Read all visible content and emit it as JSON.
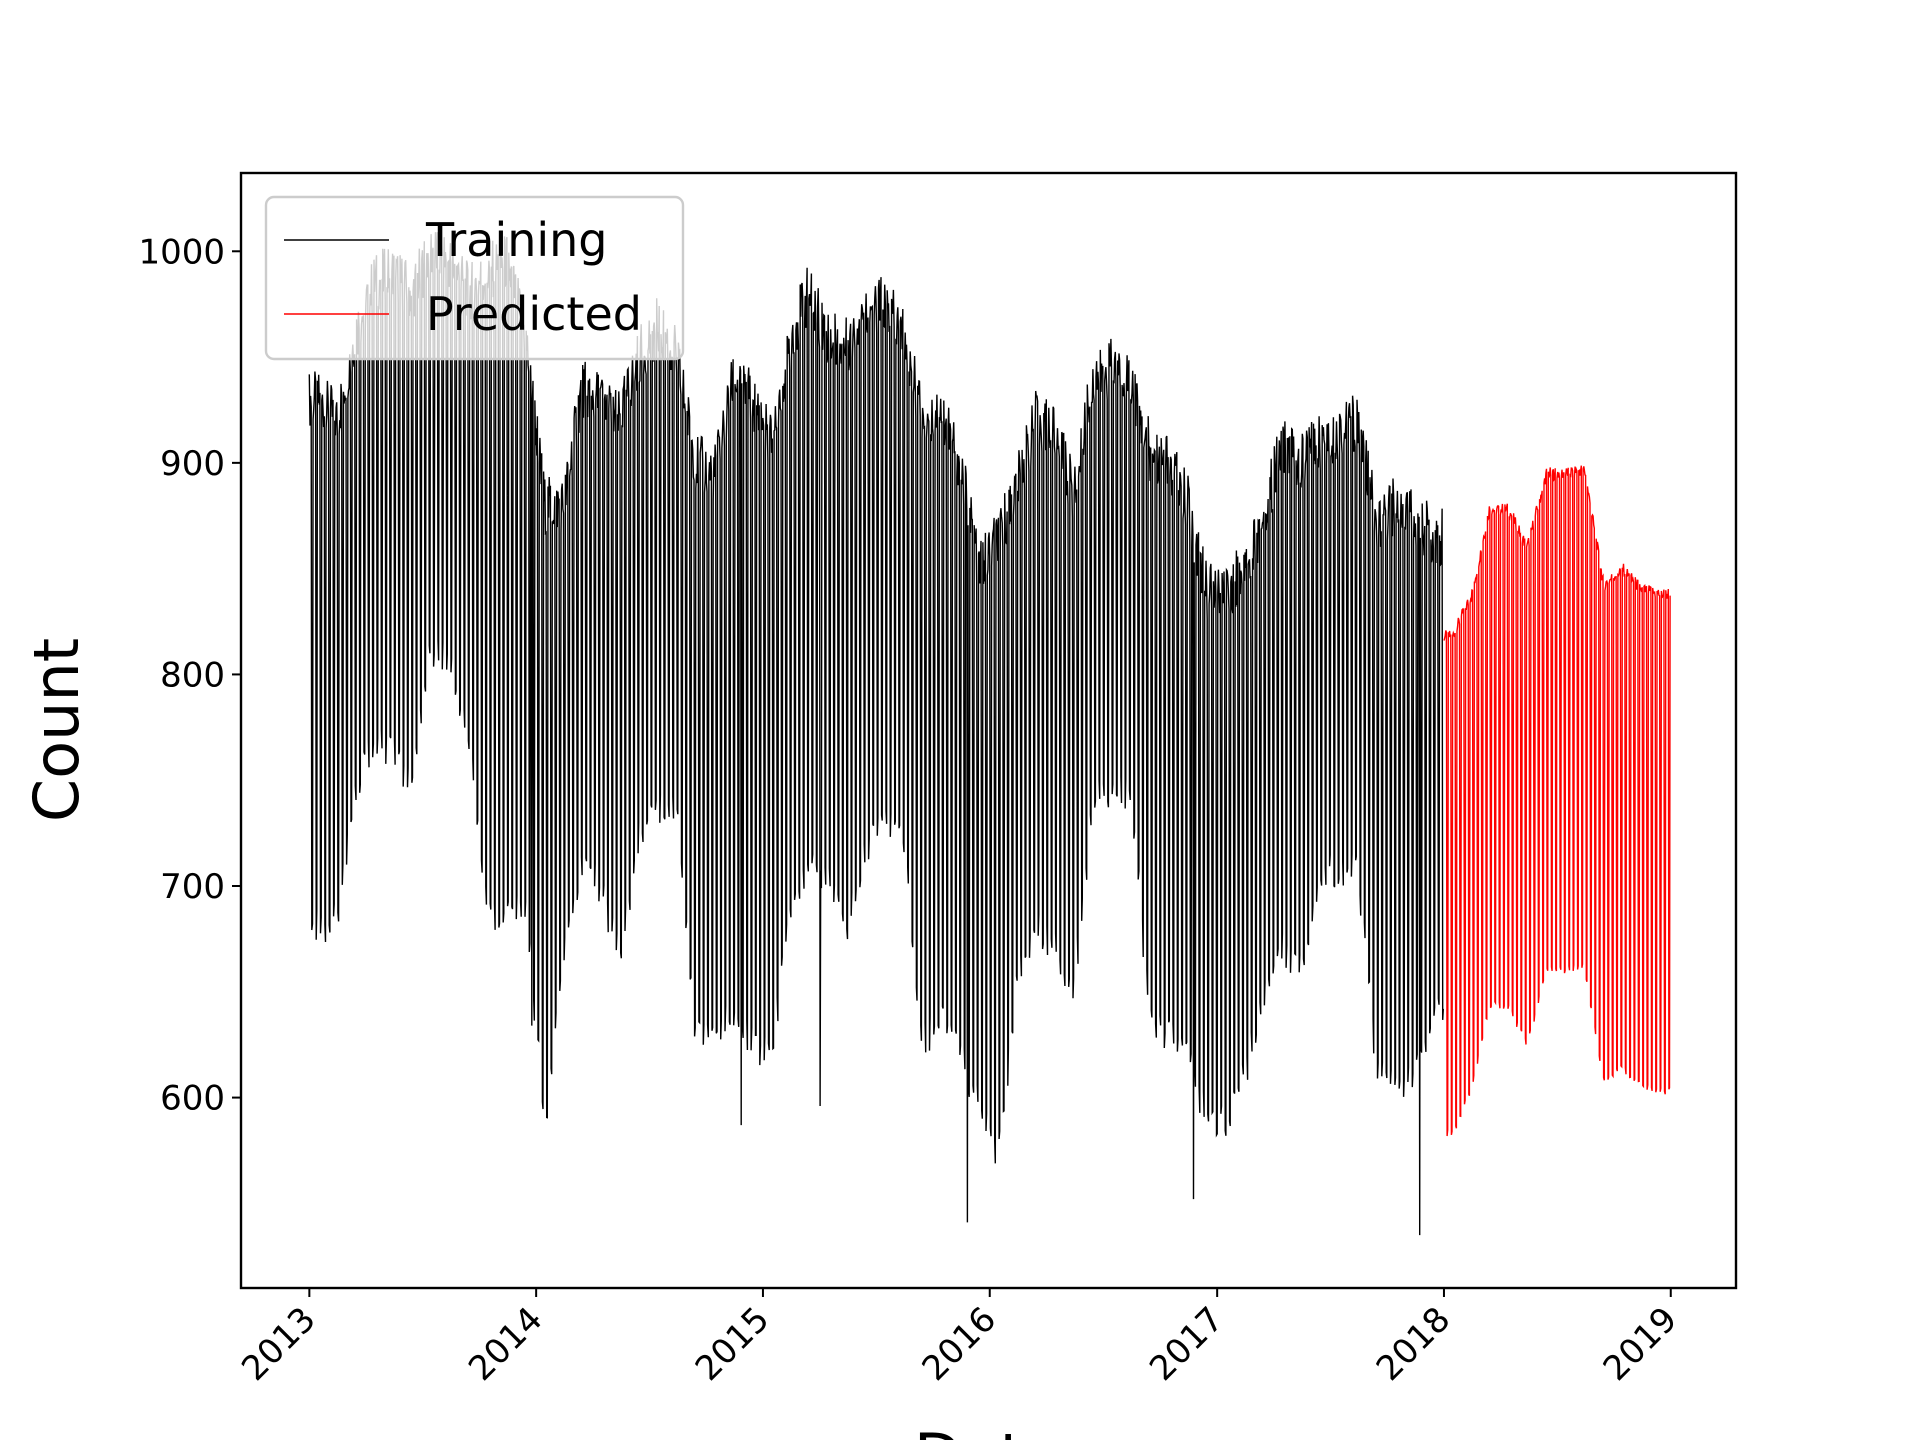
{
  "chart_data": {
    "type": "line",
    "title": "",
    "xlabel": "Date",
    "ylabel": "Count",
    "xlim": [
      "2012-09-13",
      "2019-04-16"
    ],
    "ylim": [
      510,
      1037
    ],
    "x_ticks": [
      "2013",
      "2014",
      "2015",
      "2016",
      "2017",
      "2018",
      "2019"
    ],
    "y_ticks": [
      600,
      700,
      800,
      900,
      1000
    ],
    "legend": {
      "placement": "upper-left",
      "entries": [
        "Training",
        "Predicted"
      ]
    },
    "grid": false,
    "series": [
      {
        "name": "Training",
        "color": "#000000",
        "pattern": "weekly oscillation between weekday high and weekend low",
        "x_range": [
          "2013-01-01",
          "2017-12-31"
        ],
        "monthly_upper": [
          {
            "x": "2013-01",
            "y": 930
          },
          {
            "x": "2013-02",
            "y": 920
          },
          {
            "x": "2013-03",
            "y": 960
          },
          {
            "x": "2013-04",
            "y": 985
          },
          {
            "x": "2013-05",
            "y": 990
          },
          {
            "x": "2013-06",
            "y": 980
          },
          {
            "x": "2013-07",
            "y": 1000
          },
          {
            "x": "2013-08",
            "y": 995
          },
          {
            "x": "2013-09",
            "y": 980
          },
          {
            "x": "2013-10",
            "y": 990
          },
          {
            "x": "2013-11",
            "y": 995
          },
          {
            "x": "2013-12",
            "y": 960
          },
          {
            "x": "2014-01",
            "y": 880
          },
          {
            "x": "2014-02",
            "y": 880
          },
          {
            "x": "2014-03",
            "y": 935
          },
          {
            "x": "2014-04",
            "y": 930
          },
          {
            "x": "2014-05",
            "y": 920
          },
          {
            "x": "2014-06",
            "y": 950
          },
          {
            "x": "2014-07",
            "y": 965
          },
          {
            "x": "2014-08",
            "y": 950
          },
          {
            "x": "2014-09",
            "y": 900
          },
          {
            "x": "2014-10",
            "y": 895
          },
          {
            "x": "2014-11",
            "y": 940
          },
          {
            "x": "2014-12",
            "y": 930
          },
          {
            "x": "2015-01",
            "y": 910
          },
          {
            "x": "2015-02",
            "y": 960
          },
          {
            "x": "2015-03",
            "y": 980
          },
          {
            "x": "2015-04",
            "y": 960
          },
          {
            "x": "2015-05",
            "y": 955
          },
          {
            "x": "2015-06",
            "y": 975
          },
          {
            "x": "2015-07",
            "y": 975
          },
          {
            "x": "2015-08",
            "y": 960
          },
          {
            "x": "2015-09",
            "y": 920
          },
          {
            "x": "2015-10",
            "y": 925
          },
          {
            "x": "2015-11",
            "y": 900
          },
          {
            "x": "2015-12",
            "y": 850
          },
          {
            "x": "2016-01",
            "y": 865
          },
          {
            "x": "2016-02",
            "y": 890
          },
          {
            "x": "2016-03",
            "y": 920
          },
          {
            "x": "2016-04",
            "y": 915
          },
          {
            "x": "2016-05",
            "y": 885
          },
          {
            "x": "2016-06",
            "y": 940
          },
          {
            "x": "2016-07",
            "y": 945
          },
          {
            "x": "2016-08",
            "y": 940
          },
          {
            "x": "2016-09",
            "y": 905
          },
          {
            "x": "2016-10",
            "y": 900
          },
          {
            "x": "2016-11",
            "y": 880
          },
          {
            "x": "2016-12",
            "y": 840
          },
          {
            "x": "2017-01",
            "y": 835
          },
          {
            "x": "2017-02",
            "y": 855
          },
          {
            "x": "2017-03",
            "y": 870
          },
          {
            "x": "2017-04",
            "y": 910
          },
          {
            "x": "2017-05",
            "y": 900
          },
          {
            "x": "2017-06",
            "y": 910
          },
          {
            "x": "2017-07",
            "y": 915
          },
          {
            "x": "2017-08",
            "y": 920
          },
          {
            "x": "2017-09",
            "y": 870
          },
          {
            "x": "2017-10",
            "y": 880
          },
          {
            "x": "2017-11",
            "y": 875
          },
          {
            "x": "2017-12",
            "y": 865
          }
        ],
        "monthly_lower": [
          {
            "x": "2013-01",
            "y": 680
          },
          {
            "x": "2013-02",
            "y": 685
          },
          {
            "x": "2013-03",
            "y": 745
          },
          {
            "x": "2013-04",
            "y": 768
          },
          {
            "x": "2013-05",
            "y": 765
          },
          {
            "x": "2013-06",
            "y": 745
          },
          {
            "x": "2013-07",
            "y": 810
          },
          {
            "x": "2013-08",
            "y": 805
          },
          {
            "x": "2013-09",
            "y": 770
          },
          {
            "x": "2013-10",
            "y": 685
          },
          {
            "x": "2013-11",
            "y": 685
          },
          {
            "x": "2013-12",
            "y": 690
          },
          {
            "x": "2014-01",
            "y": 586
          },
          {
            "x": "2014-02",
            "y": 670
          },
          {
            "x": "2014-03",
            "y": 710
          },
          {
            "x": "2014-04",
            "y": 700
          },
          {
            "x": "2014-05",
            "y": 665
          },
          {
            "x": "2014-06",
            "y": 720
          },
          {
            "x": "2014-07",
            "y": 735
          },
          {
            "x": "2014-08",
            "y": 735
          },
          {
            "x": "2014-09",
            "y": 630
          },
          {
            "x": "2014-10",
            "y": 630
          },
          {
            "x": "2014-11",
            "y": 640
          },
          {
            "x": "2014-12",
            "y": 625
          },
          {
            "x": "2015-01",
            "y": 620
          },
          {
            "x": "2015-02",
            "y": 690
          },
          {
            "x": "2015-03",
            "y": 710
          },
          {
            "x": "2015-04",
            "y": 705
          },
          {
            "x": "2015-05",
            "y": 680
          },
          {
            "x": "2015-06",
            "y": 715
          },
          {
            "x": "2015-07",
            "y": 730
          },
          {
            "x": "2015-08",
            "y": 725
          },
          {
            "x": "2015-09",
            "y": 625
          },
          {
            "x": "2015-10",
            "y": 640
          },
          {
            "x": "2015-11",
            "y": 620
          },
          {
            "x": "2015-12",
            "y": 595
          },
          {
            "x": "2016-01",
            "y": 570
          },
          {
            "x": "2016-02",
            "y": 660
          },
          {
            "x": "2016-03",
            "y": 680
          },
          {
            "x": "2016-04",
            "y": 670
          },
          {
            "x": "2016-05",
            "y": 650
          },
          {
            "x": "2016-06",
            "y": 740
          },
          {
            "x": "2016-07",
            "y": 745
          },
          {
            "x": "2016-08",
            "y": 745
          },
          {
            "x": "2016-09",
            "y": 635
          },
          {
            "x": "2016-10",
            "y": 630
          },
          {
            "x": "2016-11",
            "y": 620
          },
          {
            "x": "2016-12",
            "y": 590
          },
          {
            "x": "2017-01",
            "y": 590
          },
          {
            "x": "2017-02",
            "y": 610
          },
          {
            "x": "2017-03",
            "y": 650
          },
          {
            "x": "2017-04",
            "y": 670
          },
          {
            "x": "2017-05",
            "y": 660
          },
          {
            "x": "2017-06",
            "y": 705
          },
          {
            "x": "2017-07",
            "y": 708
          },
          {
            "x": "2017-08",
            "y": 710
          },
          {
            "x": "2017-09",
            "y": 610
          },
          {
            "x": "2017-10",
            "y": 605
          },
          {
            "x": "2017-11",
            "y": 610
          },
          {
            "x": "2017-12",
            "y": 640
          }
        ],
        "spikes": [
          {
            "x": "2013-12-25",
            "y": 634
          },
          {
            "x": "2014-06-15",
            "y": 730
          },
          {
            "x": "2014-11-27",
            "y": 587
          },
          {
            "x": "2015-04-03",
            "y": 596
          },
          {
            "x": "2015-11-26",
            "y": 541
          },
          {
            "x": "2016-11-24",
            "y": 552
          },
          {
            "x": "2017-11-23",
            "y": 535
          }
        ]
      },
      {
        "name": "Predicted",
        "color": "#ff0000",
        "pattern": "weekly oscillation between weekday high and weekend low",
        "x_range": [
          "2018-01-01",
          "2018-12-31"
        ],
        "monthly_upper": [
          {
            "x": "2018-01",
            "y": 818
          },
          {
            "x": "2018-02",
            "y": 838
          },
          {
            "x": "2018-03",
            "y": 878
          },
          {
            "x": "2018-04",
            "y": 878
          },
          {
            "x": "2018-05",
            "y": 860
          },
          {
            "x": "2018-06",
            "y": 895
          },
          {
            "x": "2018-07",
            "y": 895
          },
          {
            "x": "2018-08",
            "y": 897
          },
          {
            "x": "2018-09",
            "y": 842
          },
          {
            "x": "2018-10",
            "y": 850
          },
          {
            "x": "2018-11",
            "y": 840
          },
          {
            "x": "2018-12",
            "y": 838
          }
        ],
        "monthly_lower": [
          {
            "x": "2018-01",
            "y": 583
          },
          {
            "x": "2018-02",
            "y": 605
          },
          {
            "x": "2018-03",
            "y": 644
          },
          {
            "x": "2018-04",
            "y": 643
          },
          {
            "x": "2018-05",
            "y": 625
          },
          {
            "x": "2018-06",
            "y": 660
          },
          {
            "x": "2018-07",
            "y": 660
          },
          {
            "x": "2018-08",
            "y": 662
          },
          {
            "x": "2018-09",
            "y": 608
          },
          {
            "x": "2018-10",
            "y": 614
          },
          {
            "x": "2018-11",
            "y": 605
          },
          {
            "x": "2018-12",
            "y": 603
          }
        ]
      }
    ]
  }
}
